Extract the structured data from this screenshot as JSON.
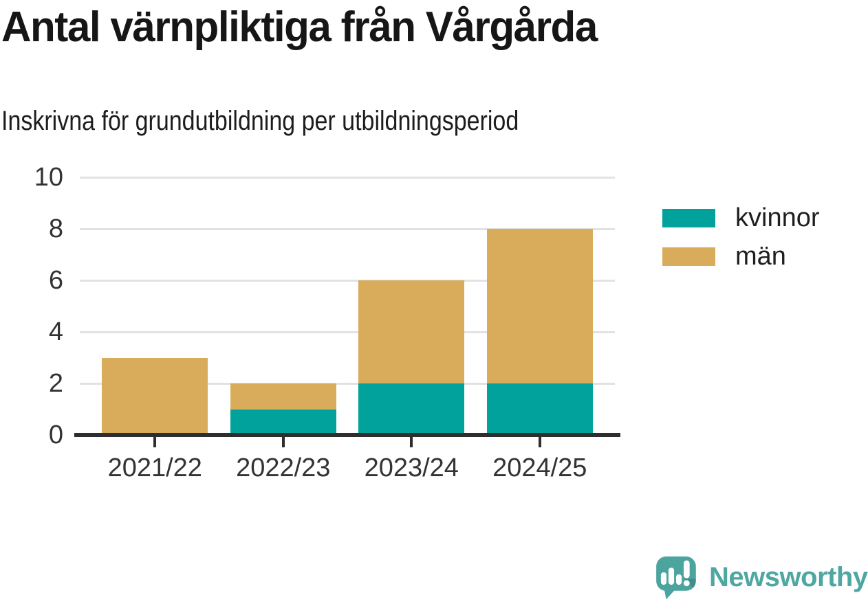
{
  "chart_data": {
    "type": "bar",
    "stacked": true,
    "title": "Antal värnpliktiga från Vårgårda",
    "subtitle": "Inskrivna för grundutbildning per utbildningsperiod",
    "categories": [
      "2021/22",
      "2022/23",
      "2023/24",
      "2024/25"
    ],
    "series": [
      {
        "name": "kvinnor",
        "color": "#00A29B",
        "values": [
          0,
          1,
          2,
          2
        ]
      },
      {
        "name": "män",
        "color": "#D9AC5B",
        "values": [
          3,
          1,
          4,
          6
        ]
      }
    ],
    "totals": [
      3,
      2,
      6,
      8
    ],
    "ylim": [
      0,
      10
    ],
    "yticks": [
      0,
      2,
      4,
      6,
      8,
      10
    ],
    "grid": true,
    "legend_position": "right",
    "colors": {
      "grid": "#E2E2E2",
      "axis": "#2E2E2E",
      "tick_text": "#333333",
      "background": "#FFFFFF"
    }
  },
  "branding": {
    "logo_text": "Newsworthy",
    "logo_color": "#4FA7A2",
    "logo_icon": "newsworthy-speech-bubble-chart-icon",
    "logo_icon_color": "#4CA49F",
    "logo_icon_shade_color": "#3E8E89"
  }
}
